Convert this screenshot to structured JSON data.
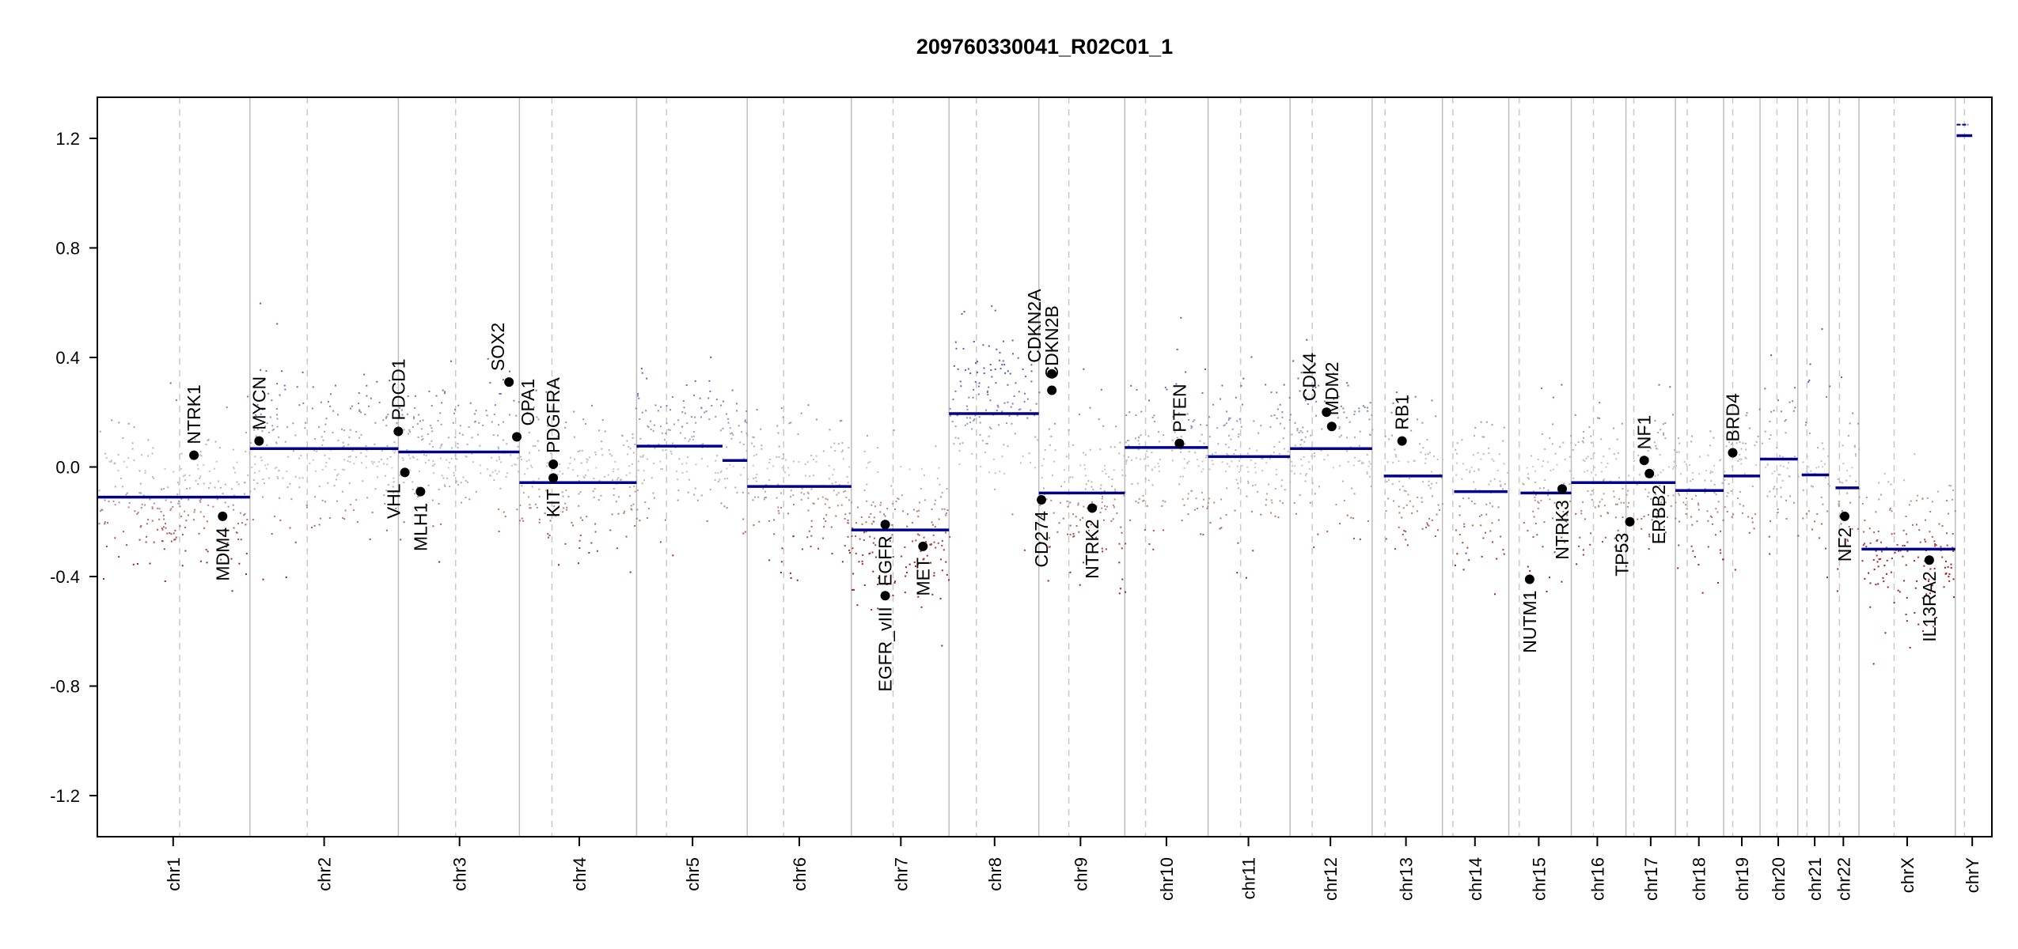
{
  "chart_data": {
    "type": "scatter",
    "title": "209760330041_R02C01_1",
    "xlabel": "",
    "ylabel": "",
    "ylim": [
      -1.35,
      1.35
    ],
    "yticks": [
      "1.2",
      "0.8",
      "0.4",
      "0.0",
      "-0.4",
      "-0.8",
      "-1.2"
    ],
    "ytick_values": [
      1.2,
      0.8,
      0.4,
      0.0,
      -0.4,
      -0.8,
      -1.2
    ],
    "grid": false,
    "chromosomes": [
      "chr1",
      "chr2",
      "chr3",
      "chr4",
      "chr5",
      "chr6",
      "chr7",
      "chr8",
      "chr9",
      "chr10",
      "chr11",
      "chr12",
      "chr13",
      "chr14",
      "chr15",
      "chr16",
      "chr17",
      "chr18",
      "chr19",
      "chr20",
      "chr21",
      "chr22",
      "chrX",
      "chrY"
    ],
    "segments": [
      {
        "chrom": "chr1",
        "mean": -0.11
      },
      {
        "chrom": "chr2",
        "mean": 0.067
      },
      {
        "chrom": "chr3",
        "mean": 0.055
      },
      {
        "chrom": "chr4",
        "mean": -0.057
      },
      {
        "chrom": "chr5",
        "mean": 0.076
      },
      {
        "chrom": "chr5",
        "mean": 0.024
      },
      {
        "chrom": "chr6",
        "mean": -0.071
      },
      {
        "chrom": "chr7",
        "mean": -0.23
      },
      {
        "chrom": "chr8",
        "mean": 0.195
      },
      {
        "chrom": "chr9",
        "mean": -0.095
      },
      {
        "chrom": "chr10",
        "mean": 0.071
      },
      {
        "chrom": "chr11",
        "mean": 0.038
      },
      {
        "chrom": "chr12",
        "mean": 0.067
      },
      {
        "chrom": "chr13",
        "mean": -0.033
      },
      {
        "chrom": "chr14",
        "mean": -0.09
      },
      {
        "chrom": "chr15",
        "mean": -0.095
      },
      {
        "chrom": "chr16",
        "mean": -0.057
      },
      {
        "chrom": "chr17",
        "mean": -0.057
      },
      {
        "chrom": "chr18",
        "mean": -0.086
      },
      {
        "chrom": "chr19",
        "mean": -0.033
      },
      {
        "chrom": "chr20",
        "mean": 0.029
      },
      {
        "chrom": "chr21",
        "mean": -0.029
      },
      {
        "chrom": "chr22",
        "mean": -0.076
      },
      {
        "chrom": "chrX",
        "mean": -0.3
      },
      {
        "chrom": "chrY",
        "mean": 1.21
      },
      {
        "chrom": "chrY",
        "mean": 1.25
      }
    ],
    "genes": [
      {
        "name": "NTRK1",
        "chrom": "chr1",
        "value": 0.043
      },
      {
        "name": "MDM4",
        "chrom": "chr1",
        "value": -0.18
      },
      {
        "name": "MYCN",
        "chrom": "chr2",
        "value": 0.095
      },
      {
        "name": "PDCD1",
        "chrom": "chr2",
        "value": 0.13
      },
      {
        "name": "VHL",
        "chrom": "chr3",
        "value": -0.02
      },
      {
        "name": "MLH1",
        "chrom": "chr3",
        "value": -0.09
      },
      {
        "name": "SOX2",
        "chrom": "chr3",
        "value": 0.31
      },
      {
        "name": "OPA1",
        "chrom": "chr3",
        "value": 0.11
      },
      {
        "name": "PDGFRA",
        "chrom": "chr4",
        "value": 0.01
      },
      {
        "name": "KIT",
        "chrom": "chr4",
        "value": -0.04
      },
      {
        "name": "EGFR",
        "chrom": "chr7",
        "value": -0.21
      },
      {
        "name": "EGFR_vIII",
        "chrom": "chr7",
        "value": -0.47
      },
      {
        "name": "MET",
        "chrom": "chr7",
        "value": -0.29
      },
      {
        "name": "CD274",
        "chrom": "chr9",
        "value": -0.12
      },
      {
        "name": "CDKN2A",
        "chrom": "chr9",
        "value": 0.34
      },
      {
        "name": "CDKN2B",
        "chrom": "chr9",
        "value": 0.28
      },
      {
        "name": "NTRK2",
        "chrom": "chr9",
        "value": -0.15
      },
      {
        "name": "PTEN",
        "chrom": "chr10",
        "value": 0.086
      },
      {
        "name": "CDK4",
        "chrom": "chr12",
        "value": 0.2
      },
      {
        "name": "MDM2",
        "chrom": "chr12",
        "value": 0.148
      },
      {
        "name": "RB1",
        "chrom": "chr13",
        "value": 0.095
      },
      {
        "name": "NUTM1",
        "chrom": "chr15",
        "value": -0.41
      },
      {
        "name": "NTRK3",
        "chrom": "chr15",
        "value": -0.08
      },
      {
        "name": "TP53",
        "chrom": "chr17",
        "value": -0.2
      },
      {
        "name": "NF1",
        "chrom": "chr17",
        "value": 0.024
      },
      {
        "name": "ERBB2",
        "chrom": "chr17",
        "value": -0.024
      },
      {
        "name": "BRD4",
        "chrom": "chr19",
        "value": 0.052
      },
      {
        "name": "NF2",
        "chrom": "chr22",
        "value": -0.18
      },
      {
        "name": "IL13RA2",
        "chrom": "chrX",
        "value": -0.34
      }
    ],
    "colors": {
      "segment": "#00008b",
      "gain": "#5a5ab4",
      "neutral": "#c8c8c8",
      "loss": "#a01e1e",
      "gene_point": "#000000"
    }
  }
}
